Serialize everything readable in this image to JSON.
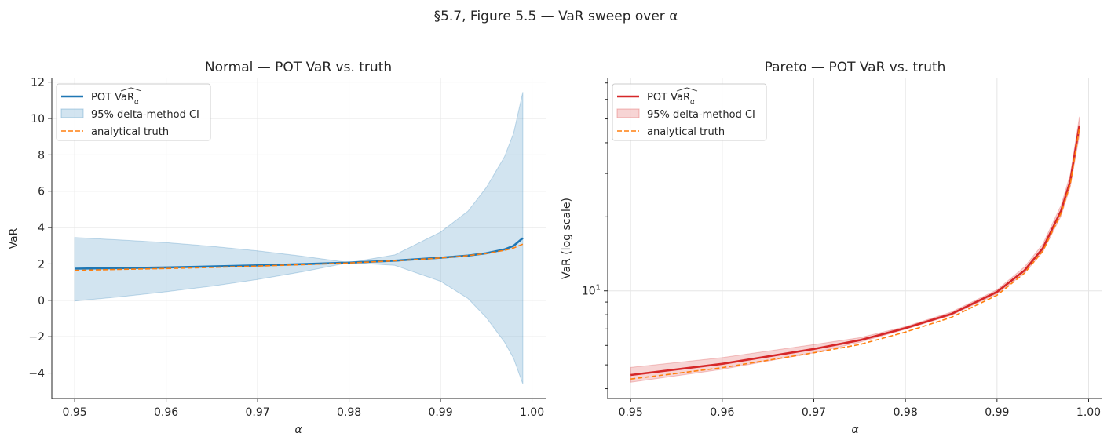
{
  "figure_title": "§5.7, Figure 5.5 — VaR sweep over α",
  "chart_data": [
    {
      "type": "line",
      "title": "Normal — POT VaR vs. truth",
      "xlabel": "α",
      "ylabel": "VaR",
      "xlim": [
        0.9475,
        1.0015
      ],
      "ylim": [
        -5.4,
        12.2
      ],
      "x_ticks": [
        "0.95",
        "0.96",
        "0.97",
        "0.98",
        "0.99",
        "1.00"
      ],
      "y_ticks": [
        "−4",
        "−2",
        "0",
        "2",
        "4",
        "6",
        "8",
        "10",
        "12"
      ],
      "grid": true,
      "legend_position": "upper-left",
      "series": [
        {
          "name": "POT VaR_α",
          "style": "solid",
          "color": "#1f77b4",
          "x": [
            0.95,
            0.955,
            0.96,
            0.965,
            0.97,
            0.975,
            0.98,
            0.985,
            0.99,
            0.993,
            0.995,
            0.997,
            0.998,
            0.999
          ],
          "y": [
            1.74,
            1.77,
            1.81,
            1.86,
            1.92,
            1.99,
            2.07,
            2.18,
            2.34,
            2.46,
            2.59,
            2.8,
            3.0,
            3.42
          ]
        },
        {
          "name": "95% delta-method CI",
          "style": "band",
          "color": "#1f77b4",
          "x": [
            0.95,
            0.955,
            0.96,
            0.965,
            0.97,
            0.975,
            0.98,
            0.985,
            0.99,
            0.993,
            0.995,
            0.997,
            0.998,
            0.999
          ],
          "lower": [
            -0.04,
            0.2,
            0.47,
            0.78,
            1.15,
            1.58,
            2.07,
            1.92,
            1.05,
            0.1,
            -0.95,
            -2.3,
            -3.2,
            -4.6
          ],
          "upper": [
            3.45,
            3.32,
            3.17,
            2.97,
            2.72,
            2.42,
            2.07,
            2.5,
            3.75,
            4.9,
            6.2,
            7.9,
            9.2,
            11.45
          ]
        },
        {
          "name": "analytical truth",
          "style": "dashed",
          "color": "#ff7f0e",
          "x": [
            0.95,
            0.955,
            0.96,
            0.965,
            0.97,
            0.975,
            0.98,
            0.985,
            0.99,
            0.993,
            0.995,
            0.997,
            0.998,
            0.999
          ],
          "y": [
            1.645,
            1.7,
            1.75,
            1.81,
            1.88,
            1.96,
            2.054,
            2.17,
            2.326,
            2.46,
            2.576,
            2.748,
            2.878,
            3.09
          ]
        }
      ]
    },
    {
      "type": "line",
      "title": "Pareto — POT VaR vs. truth",
      "xlabel": "α",
      "ylabel": "VaR (log scale)",
      "xlim": [
        0.9475,
        1.0015
      ],
      "yscale": "log",
      "ylim": [
        3.65,
        73
      ],
      "x_ticks": [
        "0.95",
        "0.96",
        "0.97",
        "0.98",
        "0.99",
        "1.00"
      ],
      "y_ticks": [
        "10"
      ],
      "grid": true,
      "legend_position": "upper-left",
      "series": [
        {
          "name": "POT VaR_α",
          "style": "solid",
          "color": "#d62728",
          "x": [
            0.95,
            0.96,
            0.97,
            0.975,
            0.98,
            0.985,
            0.99,
            0.993,
            0.995,
            0.997,
            0.998,
            0.999
          ],
          "y": [
            4.55,
            5.05,
            5.8,
            6.3,
            7.05,
            8.05,
            9.9,
            12.1,
            14.9,
            21.2,
            28.0,
            47.0
          ]
        },
        {
          "name": "95% delta-method CI",
          "style": "band",
          "color": "#d62728",
          "x": [
            0.95,
            0.96,
            0.97,
            0.975,
            0.98,
            0.985,
            0.99,
            0.993,
            0.995,
            0.997,
            0.998,
            0.999
          ],
          "lower": [
            4.25,
            4.8,
            5.6,
            6.18,
            6.98,
            7.95,
            9.72,
            11.8,
            14.4,
            20.2,
            26.5,
            43.0
          ],
          "upper": [
            4.88,
            5.35,
            6.05,
            6.45,
            7.15,
            8.2,
            10.1,
            12.5,
            15.5,
            22.3,
            29.8,
            51.0
          ]
        },
        {
          "name": "analytical truth",
          "style": "dashed",
          "color": "#ff7f0e",
          "x": [
            0.95,
            0.96,
            0.97,
            0.975,
            0.98,
            0.985,
            0.99,
            0.993,
            0.995,
            0.997,
            0.998,
            0.999
          ],
          "y": [
            4.38,
            4.87,
            5.6,
            6.05,
            6.8,
            7.8,
            9.6,
            11.8,
            14.5,
            20.7,
            27.2,
            46.0
          ]
        }
      ]
    }
  ]
}
